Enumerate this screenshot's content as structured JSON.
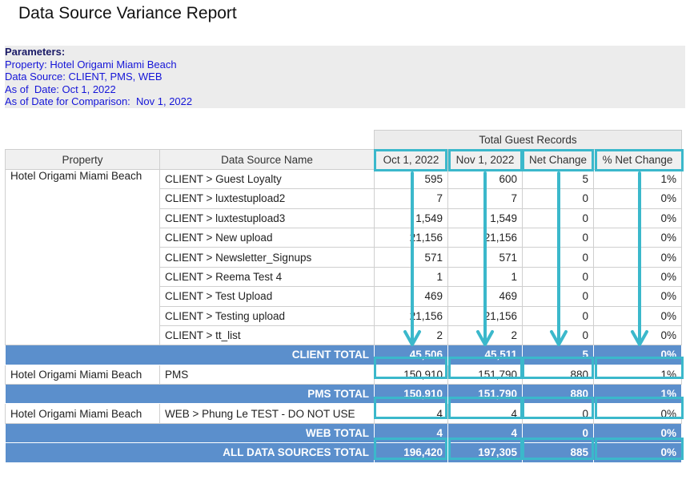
{
  "report": {
    "title": "Data Source Variance Report"
  },
  "parameters": {
    "heading": "Parameters:",
    "lines": [
      "Property: Hotel Origami Miami Beach",
      "Data Source: CLIENT, PMS, WEB",
      "As of  Date: Oct 1, 2022",
      "As of Date for Comparison:  Nov 1, 2022"
    ]
  },
  "table": {
    "group_header": "Total Guest Records",
    "headers": {
      "property": "Property",
      "source": "Data Source Name",
      "col1": "Oct 1, 2022",
      "col2": "Nov 1, 2022",
      "col3": "Net Change",
      "col4": "% Net Change"
    },
    "client_property": "Hotel Origami Miami Beach",
    "client_rows": [
      {
        "source": "CLIENT > Guest Loyalty",
        "v1": "595",
        "v2": "600",
        "net": "5",
        "pct": "1%"
      },
      {
        "source": "CLIENT > luxtestupload2",
        "v1": "7",
        "v2": "7",
        "net": "0",
        "pct": "0%"
      },
      {
        "source": "CLIENT > luxtestupload3",
        "v1": "1,549",
        "v2": "1,549",
        "net": "0",
        "pct": "0%"
      },
      {
        "source": "CLIENT > New upload",
        "v1": "21,156",
        "v2": "21,156",
        "net": "0",
        "pct": "0%"
      },
      {
        "source": "CLIENT > Newsletter_Signups",
        "v1": "571",
        "v2": "571",
        "net": "0",
        "pct": "0%"
      },
      {
        "source": "CLIENT > Reema Test 4",
        "v1": "1",
        "v2": "1",
        "net": "0",
        "pct": "0%"
      },
      {
        "source": "CLIENT > Test Upload",
        "v1": "469",
        "v2": "469",
        "net": "0",
        "pct": "0%"
      },
      {
        "source": "CLIENT > Testing upload",
        "v1": "21,156",
        "v2": "21,156",
        "net": "0",
        "pct": "0%"
      },
      {
        "source": "CLIENT > tt_list",
        "v1": "2",
        "v2": "2",
        "net": "0",
        "pct": "0%"
      }
    ],
    "client_total": {
      "label": "CLIENT TOTAL",
      "v1": "45,506",
      "v2": "45,511",
      "net": "5",
      "pct": "0%"
    },
    "pms_row": {
      "property": "Hotel Origami Miami Beach",
      "source": "PMS",
      "v1": "150,910",
      "v2": "151,790",
      "net": "880",
      "pct": "1%"
    },
    "pms_total": {
      "label": "PMS TOTAL",
      "v1": "150,910",
      "v2": "151,790",
      "net": "880",
      "pct": "1%"
    },
    "web_row": {
      "property": "Hotel Origami Miami Beach",
      "source": "WEB > Phung Le TEST - DO NOT USE",
      "v1": "4",
      "v2": "4",
      "net": "0",
      "pct": "0%"
    },
    "web_total": {
      "label": "WEB TOTAL",
      "v1": "4",
      "v2": "4",
      "net": "0",
      "pct": "0%"
    },
    "grand_total": {
      "label": "ALL DATA SOURCES TOTAL",
      "v1": "196,420",
      "v2": "197,305",
      "net": "885",
      "pct": "0%"
    }
  },
  "colors": {
    "highlight": "#3bb8cb",
    "total_row": "#5b8fcc",
    "param_text": "#1515d8"
  }
}
